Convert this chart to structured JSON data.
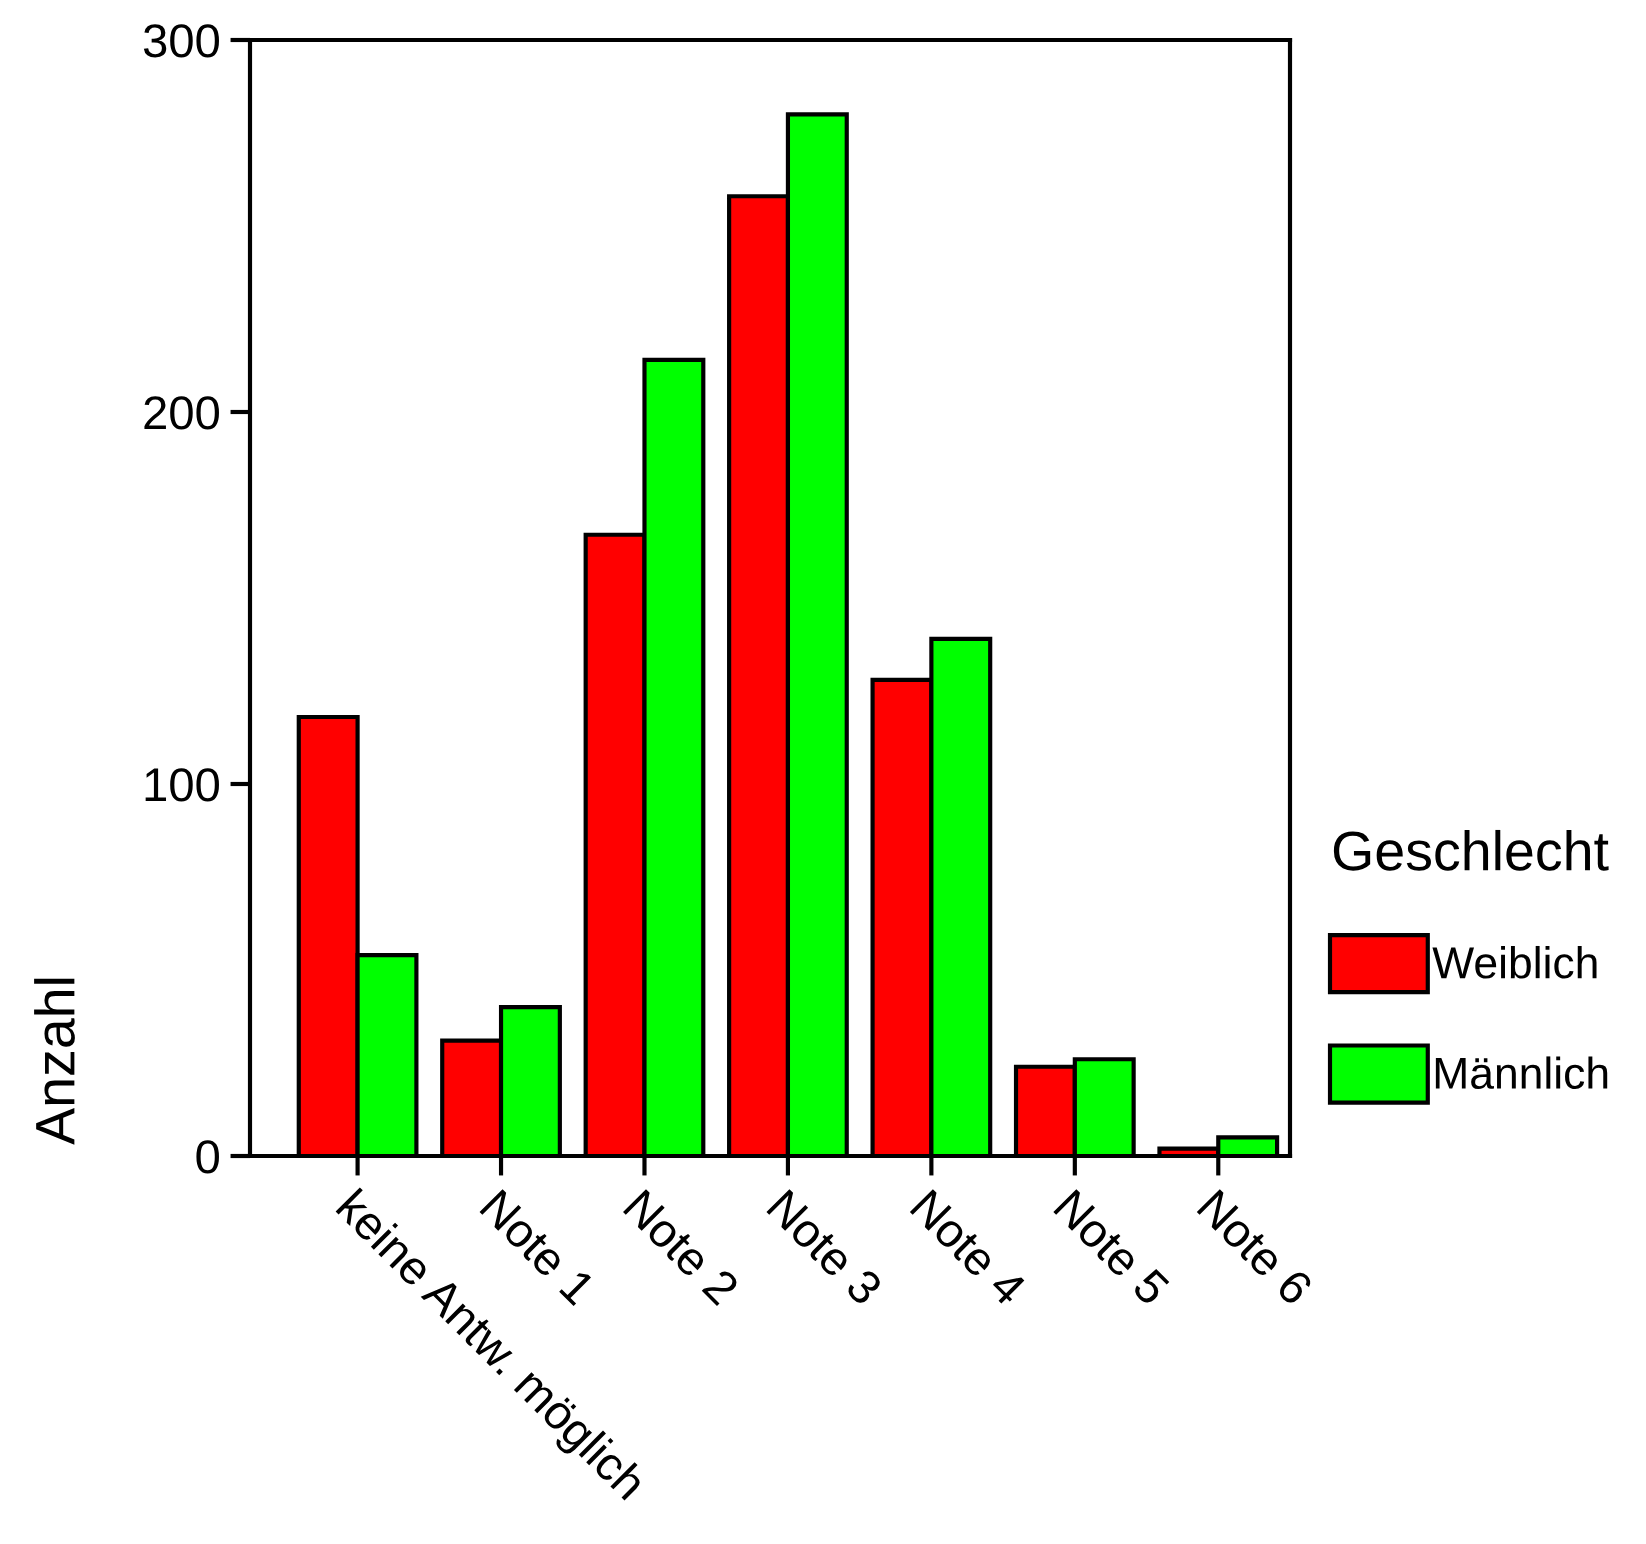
{
  "chart_data": {
    "type": "bar",
    "ylabel": "Anzahl",
    "legend_title": "Geschlecht",
    "categories": [
      "keine Antw. möglich",
      "Note 1",
      "Note 2",
      "Note 3",
      "Note 4",
      "Note 5",
      "Note 6"
    ],
    "series": [
      {
        "name": "Weiblich",
        "color": "#ff0000",
        "values": [
          118,
          31,
          167,
          258,
          128,
          24,
          2
        ]
      },
      {
        "name": "Männlich",
        "color": "#00ff00",
        "values": [
          54,
          40,
          214,
          280,
          139,
          26,
          5
        ]
      }
    ],
    "ylim": [
      0,
      300
    ],
    "yticks": [
      0,
      100,
      200,
      300
    ],
    "grid": false,
    "legend": "right"
  }
}
